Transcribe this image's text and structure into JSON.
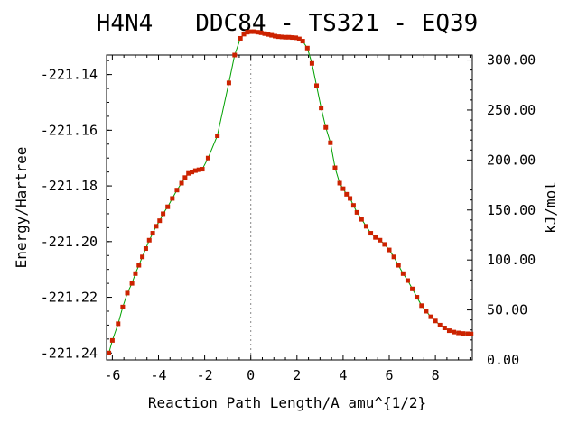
{
  "chart_data": {
    "type": "line",
    "title": "H4N4   DDC84 - TS321 - EQ39",
    "xlabel": "Reaction Path Length/A amu^{1/2}",
    "ylabel": "Energy/Hartree",
    "y2label": "kJ/mol",
    "xlim": [
      -6.25,
      9.6
    ],
    "ylim": [
      -221.2425,
      -221.133
    ],
    "y2lim": [
      0.0,
      305.0
    ],
    "x_ticks": [
      "-6",
      "-4",
      "-2",
      "0",
      "2",
      "4",
      "6",
      "8"
    ],
    "y_ticks": [
      "-221.14",
      "-221.16",
      "-221.18",
      "-221.20",
      "-221.22",
      "-221.24"
    ],
    "y2_ticks": [
      "300.00",
      "250.00",
      "200.00",
      "150.00",
      "100.00",
      "50.00",
      "0.00"
    ],
    "ts_marker_x": 0.0,
    "line_color": "#00a000",
    "marker_color": "#cc2200",
    "points": [
      {
        "x": -6.15,
        "y": -221.24
      },
      {
        "x": -6.0,
        "y": -221.2355
      },
      {
        "x": -5.75,
        "y": -221.2295
      },
      {
        "x": -5.55,
        "y": -221.2235
      },
      {
        "x": -5.35,
        "y": -221.2185
      },
      {
        "x": -5.15,
        "y": -221.215
      },
      {
        "x": -5.0,
        "y": -221.2115
      },
      {
        "x": -4.85,
        "y": -221.2085
      },
      {
        "x": -4.7,
        "y": -221.2055
      },
      {
        "x": -4.55,
        "y": -221.2025
      },
      {
        "x": -4.4,
        "y": -221.1995
      },
      {
        "x": -4.25,
        "y": -221.197
      },
      {
        "x": -4.1,
        "y": -221.1945
      },
      {
        "x": -3.95,
        "y": -221.1925
      },
      {
        "x": -3.8,
        "y": -221.19
      },
      {
        "x": -3.6,
        "y": -221.1875
      },
      {
        "x": -3.4,
        "y": -221.1845
      },
      {
        "x": -3.2,
        "y": -221.1815
      },
      {
        "x": -3.0,
        "y": -221.179
      },
      {
        "x": -2.85,
        "y": -221.177
      },
      {
        "x": -2.7,
        "y": -221.1755
      },
      {
        "x": -2.55,
        "y": -221.175
      },
      {
        "x": -2.4,
        "y": -221.1745
      },
      {
        "x": -2.25,
        "y": -221.1742
      },
      {
        "x": -2.1,
        "y": -221.174
      },
      {
        "x": -1.85,
        "y": -221.17
      },
      {
        "x": -1.45,
        "y": -221.162
      },
      {
        "x": -0.95,
        "y": -221.143
      },
      {
        "x": -0.7,
        "y": -221.133
      },
      {
        "x": -0.45,
        "y": -221.127
      },
      {
        "x": -0.3,
        "y": -221.1255
      },
      {
        "x": -0.15,
        "y": -221.1248
      },
      {
        "x": 0.0,
        "y": -221.1246
      },
      {
        "x": 0.15,
        "y": -221.1246
      },
      {
        "x": 0.3,
        "y": -221.1248
      },
      {
        "x": 0.45,
        "y": -221.125
      },
      {
        "x": 0.6,
        "y": -221.1253
      },
      {
        "x": 0.75,
        "y": -221.1256
      },
      {
        "x": 0.9,
        "y": -221.1259
      },
      {
        "x": 1.05,
        "y": -221.1262
      },
      {
        "x": 1.2,
        "y": -221.1264
      },
      {
        "x": 1.35,
        "y": -221.1265
      },
      {
        "x": 1.5,
        "y": -221.1266
      },
      {
        "x": 1.65,
        "y": -221.1266
      },
      {
        "x": 1.8,
        "y": -221.1267
      },
      {
        "x": 1.95,
        "y": -221.1268
      },
      {
        "x": 2.1,
        "y": -221.1272
      },
      {
        "x": 2.25,
        "y": -221.128
      },
      {
        "x": 2.45,
        "y": -221.1305
      },
      {
        "x": 2.65,
        "y": -221.136
      },
      {
        "x": 2.85,
        "y": -221.144
      },
      {
        "x": 3.05,
        "y": -221.152
      },
      {
        "x": 3.25,
        "y": -221.159
      },
      {
        "x": 3.45,
        "y": -221.1645
      },
      {
        "x": 3.65,
        "y": -221.1735
      },
      {
        "x": 3.85,
        "y": -221.179
      },
      {
        "x": 4.0,
        "y": -221.181
      },
      {
        "x": 4.15,
        "y": -221.183
      },
      {
        "x": 4.3,
        "y": -221.1845
      },
      {
        "x": 4.45,
        "y": -221.187
      },
      {
        "x": 4.6,
        "y": -221.1895
      },
      {
        "x": 4.8,
        "y": -221.192
      },
      {
        "x": 5.0,
        "y": -221.1945
      },
      {
        "x": 5.2,
        "y": -221.197
      },
      {
        "x": 5.4,
        "y": -221.1985
      },
      {
        "x": 5.6,
        "y": -221.1995
      },
      {
        "x": 5.8,
        "y": -221.201
      },
      {
        "x": 6.0,
        "y": -221.203
      },
      {
        "x": 6.2,
        "y": -221.2055
      },
      {
        "x": 6.4,
        "y": -221.2085
      },
      {
        "x": 6.6,
        "y": -221.2115
      },
      {
        "x": 6.8,
        "y": -221.214
      },
      {
        "x": 7.0,
        "y": -221.217
      },
      {
        "x": 7.2,
        "y": -221.22
      },
      {
        "x": 7.4,
        "y": -221.223
      },
      {
        "x": 7.6,
        "y": -221.225
      },
      {
        "x": 7.8,
        "y": -221.227
      },
      {
        "x": 8.0,
        "y": -221.2285
      },
      {
        "x": 8.2,
        "y": -221.23
      },
      {
        "x": 8.4,
        "y": -221.231
      },
      {
        "x": 8.6,
        "y": -221.232
      },
      {
        "x": 8.8,
        "y": -221.2325
      },
      {
        "x": 9.0,
        "y": -221.2328
      },
      {
        "x": 9.2,
        "y": -221.233
      },
      {
        "x": 9.4,
        "y": -221.2331
      },
      {
        "x": 9.55,
        "y": -221.2332
      }
    ]
  }
}
